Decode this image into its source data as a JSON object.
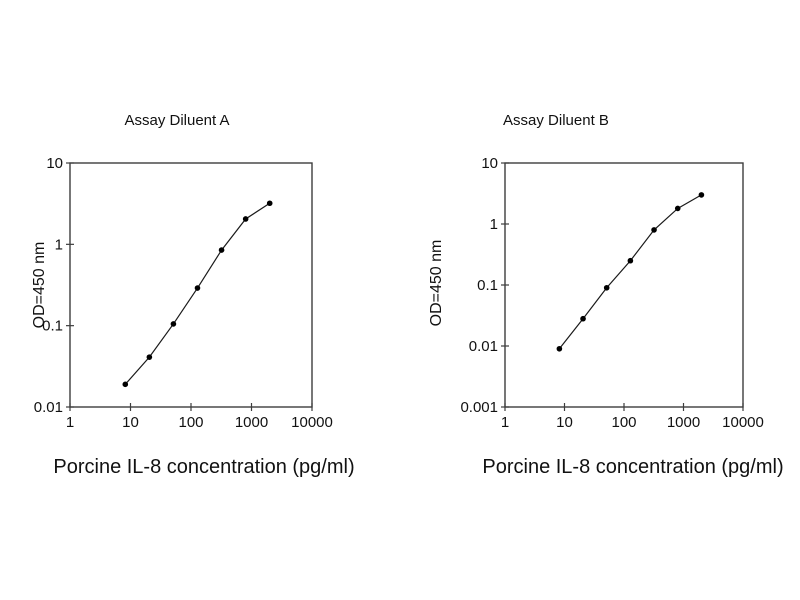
{
  "page": {
    "background_color": "#ffffff",
    "text_color": "#111111",
    "axis_color": "#3d3d3d"
  },
  "chart_data": [
    {
      "type": "line",
      "title": "Assay Diluent A",
      "xlabel": "Porcine IL-8 concentration (pg/ml)",
      "ylabel": "OD=450 nm",
      "x_scale": "log",
      "y_scale": "log",
      "xlim": [
        1,
        10000
      ],
      "ylim": [
        0.01,
        10
      ],
      "x_ticks": [
        1,
        10,
        100,
        1000,
        10000
      ],
      "y_ticks": [
        0.01,
        0.1,
        1,
        10
      ],
      "grid": false,
      "legend": false,
      "marker": "filled-circle",
      "line_color": "#1a1a1a",
      "marker_color": "#000000",
      "x": [
        8.2,
        20.5,
        51.2,
        128,
        320,
        800,
        2000
      ],
      "y": [
        0.019,
        0.041,
        0.105,
        0.29,
        0.85,
        2.05,
        3.2
      ]
    },
    {
      "type": "line",
      "title": "Assay Diluent B",
      "xlabel": "Porcine IL-8 concentration (pg/ml)",
      "ylabel": "OD=450 nm",
      "x_scale": "log",
      "y_scale": "log",
      "xlim": [
        1,
        10000
      ],
      "ylim": [
        0.001,
        10
      ],
      "x_ticks": [
        1,
        10,
        100,
        1000,
        10000
      ],
      "y_ticks": [
        0.001,
        0.01,
        0.1,
        1,
        10
      ],
      "grid": false,
      "legend": false,
      "marker": "filled-circle",
      "line_color": "#1a1a1a",
      "marker_color": "#000000",
      "x": [
        8.2,
        20.5,
        51.2,
        128,
        320,
        800,
        2000
      ],
      "y": [
        0.009,
        0.028,
        0.09,
        0.25,
        0.8,
        1.8,
        3.0
      ]
    }
  ]
}
